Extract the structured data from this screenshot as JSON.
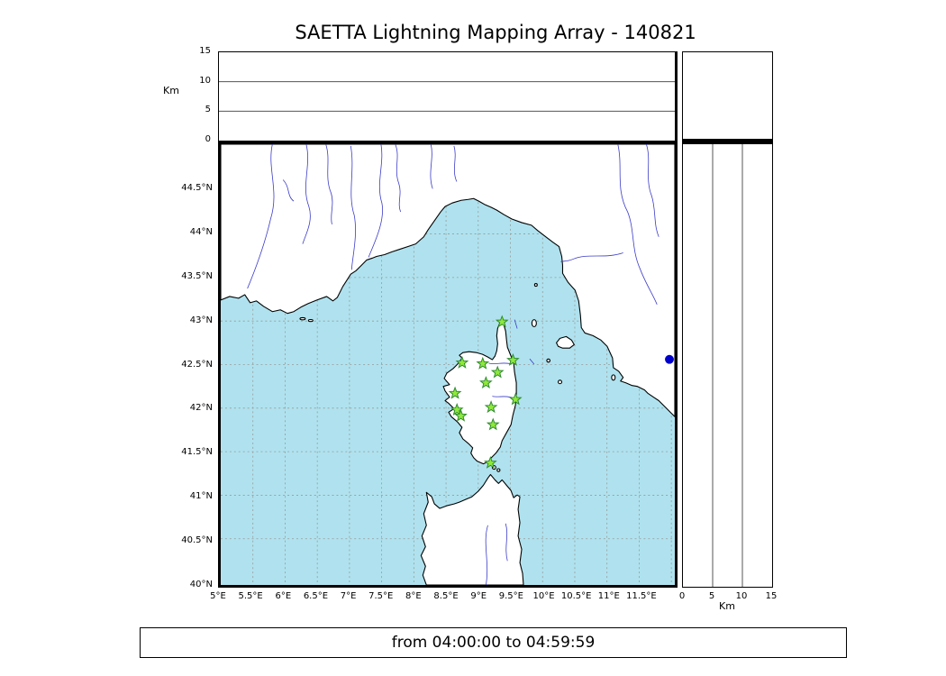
{
  "title": "SAETTA Lightning Mapping Array - 140821",
  "footer": {
    "time_range": "from 04:00:00 to 04:59:59"
  },
  "colors": {
    "sea": "#AFE2EE",
    "land": "#FFFFFF",
    "coast": "#000000",
    "river": "#3A3AC8",
    "grid": "#999999",
    "panel_grid": "#555555",
    "station_fill": "#8FE83C",
    "station_edge": "#2E8B2E",
    "event_dot": "#0000CC"
  },
  "panels": {
    "top_altitude": {
      "unit_label": "Km",
      "range": [
        0,
        15
      ],
      "ticks": [
        {
          "value": 0,
          "label": "0"
        },
        {
          "value": 5,
          "label": "5"
        },
        {
          "value": 10,
          "label": "10"
        },
        {
          "value": 15,
          "label": "15"
        }
      ],
      "gridlines": [
        5,
        10
      ]
    },
    "right_altitude": {
      "unit_label": "Km",
      "range": [
        0,
        15
      ],
      "ticks": [
        {
          "value": 0,
          "label": "0"
        },
        {
          "value": 5,
          "label": "5"
        },
        {
          "value": 10,
          "label": "10"
        },
        {
          "value": 15,
          "label": "15"
        }
      ],
      "gridlines": [
        5,
        10
      ]
    }
  },
  "map": {
    "lat_ticks": [
      {
        "value": 44.5,
        "label": "44.5°N"
      },
      {
        "value": 44,
        "label": "44°N"
      },
      {
        "value": 43.5,
        "label": "43.5°N"
      },
      {
        "value": 43,
        "label": "43°N"
      },
      {
        "value": 42.5,
        "label": "42.5°N"
      },
      {
        "value": 42,
        "label": "42°N"
      },
      {
        "value": 41.5,
        "label": "41.5°N"
      },
      {
        "value": 41,
        "label": "41°N"
      },
      {
        "value": 40.5,
        "label": "40.5°N"
      },
      {
        "value": 40,
        "label": "40°N"
      }
    ],
    "lon_ticks": [
      {
        "value": 5,
        "label": "5°E"
      },
      {
        "value": 5.5,
        "label": "5.5°E"
      },
      {
        "value": 6,
        "label": "6°E"
      },
      {
        "value": 6.5,
        "label": "6.5°E"
      },
      {
        "value": 7,
        "label": "7°E"
      },
      {
        "value": 7.5,
        "label": "7.5°E"
      },
      {
        "value": 8,
        "label": "8°E"
      },
      {
        "value": 8.5,
        "label": "8.5°E"
      },
      {
        "value": 9,
        "label": "9°E"
      },
      {
        "value": 9.5,
        "label": "9.5°E"
      },
      {
        "value": 10,
        "label": "10°E"
      },
      {
        "value": 10.5,
        "label": "10.5°E"
      },
      {
        "value": 11,
        "label": "11°E"
      },
      {
        "value": 11.5,
        "label": "11.5°E"
      }
    ],
    "lon_gridlines": [
      5.5,
      6,
      6.5,
      7,
      7.5,
      8,
      8.5,
      9,
      9.5,
      10,
      10.5,
      11,
      11.5,
      12
    ],
    "lat_gridlines": [
      40.5,
      41,
      41.5,
      42,
      42.5,
      43,
      43.5,
      44,
      44.5,
      45
    ]
  },
  "chart_data": {
    "type": "scatter",
    "title": "SAETTA Lightning Mapping Array - 140821",
    "time_window": "from 04:00:00 to 04:59:59",
    "layout": "LMA display: altitude-vs-longitude top panel, plan-view map, altitude-vs-latitude right panel",
    "map_extent": {
      "lon": [
        5.0,
        12.05
      ],
      "lat": [
        39.97,
        45.03
      ]
    },
    "altitude_km": {
      "range": [
        0,
        15
      ],
      "ticks": [
        0,
        5,
        10,
        15
      ]
    },
    "stations": [
      {
        "lon": 9.37,
        "lat": 42.99
      },
      {
        "lon": 8.75,
        "lat": 42.52
      },
      {
        "lon": 9.07,
        "lat": 42.51
      },
      {
        "lon": 9.54,
        "lat": 42.55
      },
      {
        "lon": 9.3,
        "lat": 42.41
      },
      {
        "lon": 9.12,
        "lat": 42.29
      },
      {
        "lon": 8.64,
        "lat": 42.17
      },
      {
        "lon": 9.58,
        "lat": 42.1
      },
      {
        "lon": 8.67,
        "lat": 41.98
      },
      {
        "lon": 8.73,
        "lat": 41.91
      },
      {
        "lon": 9.2,
        "lat": 42.01
      },
      {
        "lon": 9.23,
        "lat": 41.81
      },
      {
        "lon": 9.19,
        "lat": 41.37
      }
    ],
    "events": [
      {
        "lon": 11.97,
        "lat": 42.56,
        "marker": "circle",
        "color": "#0000CC"
      }
    ]
  }
}
